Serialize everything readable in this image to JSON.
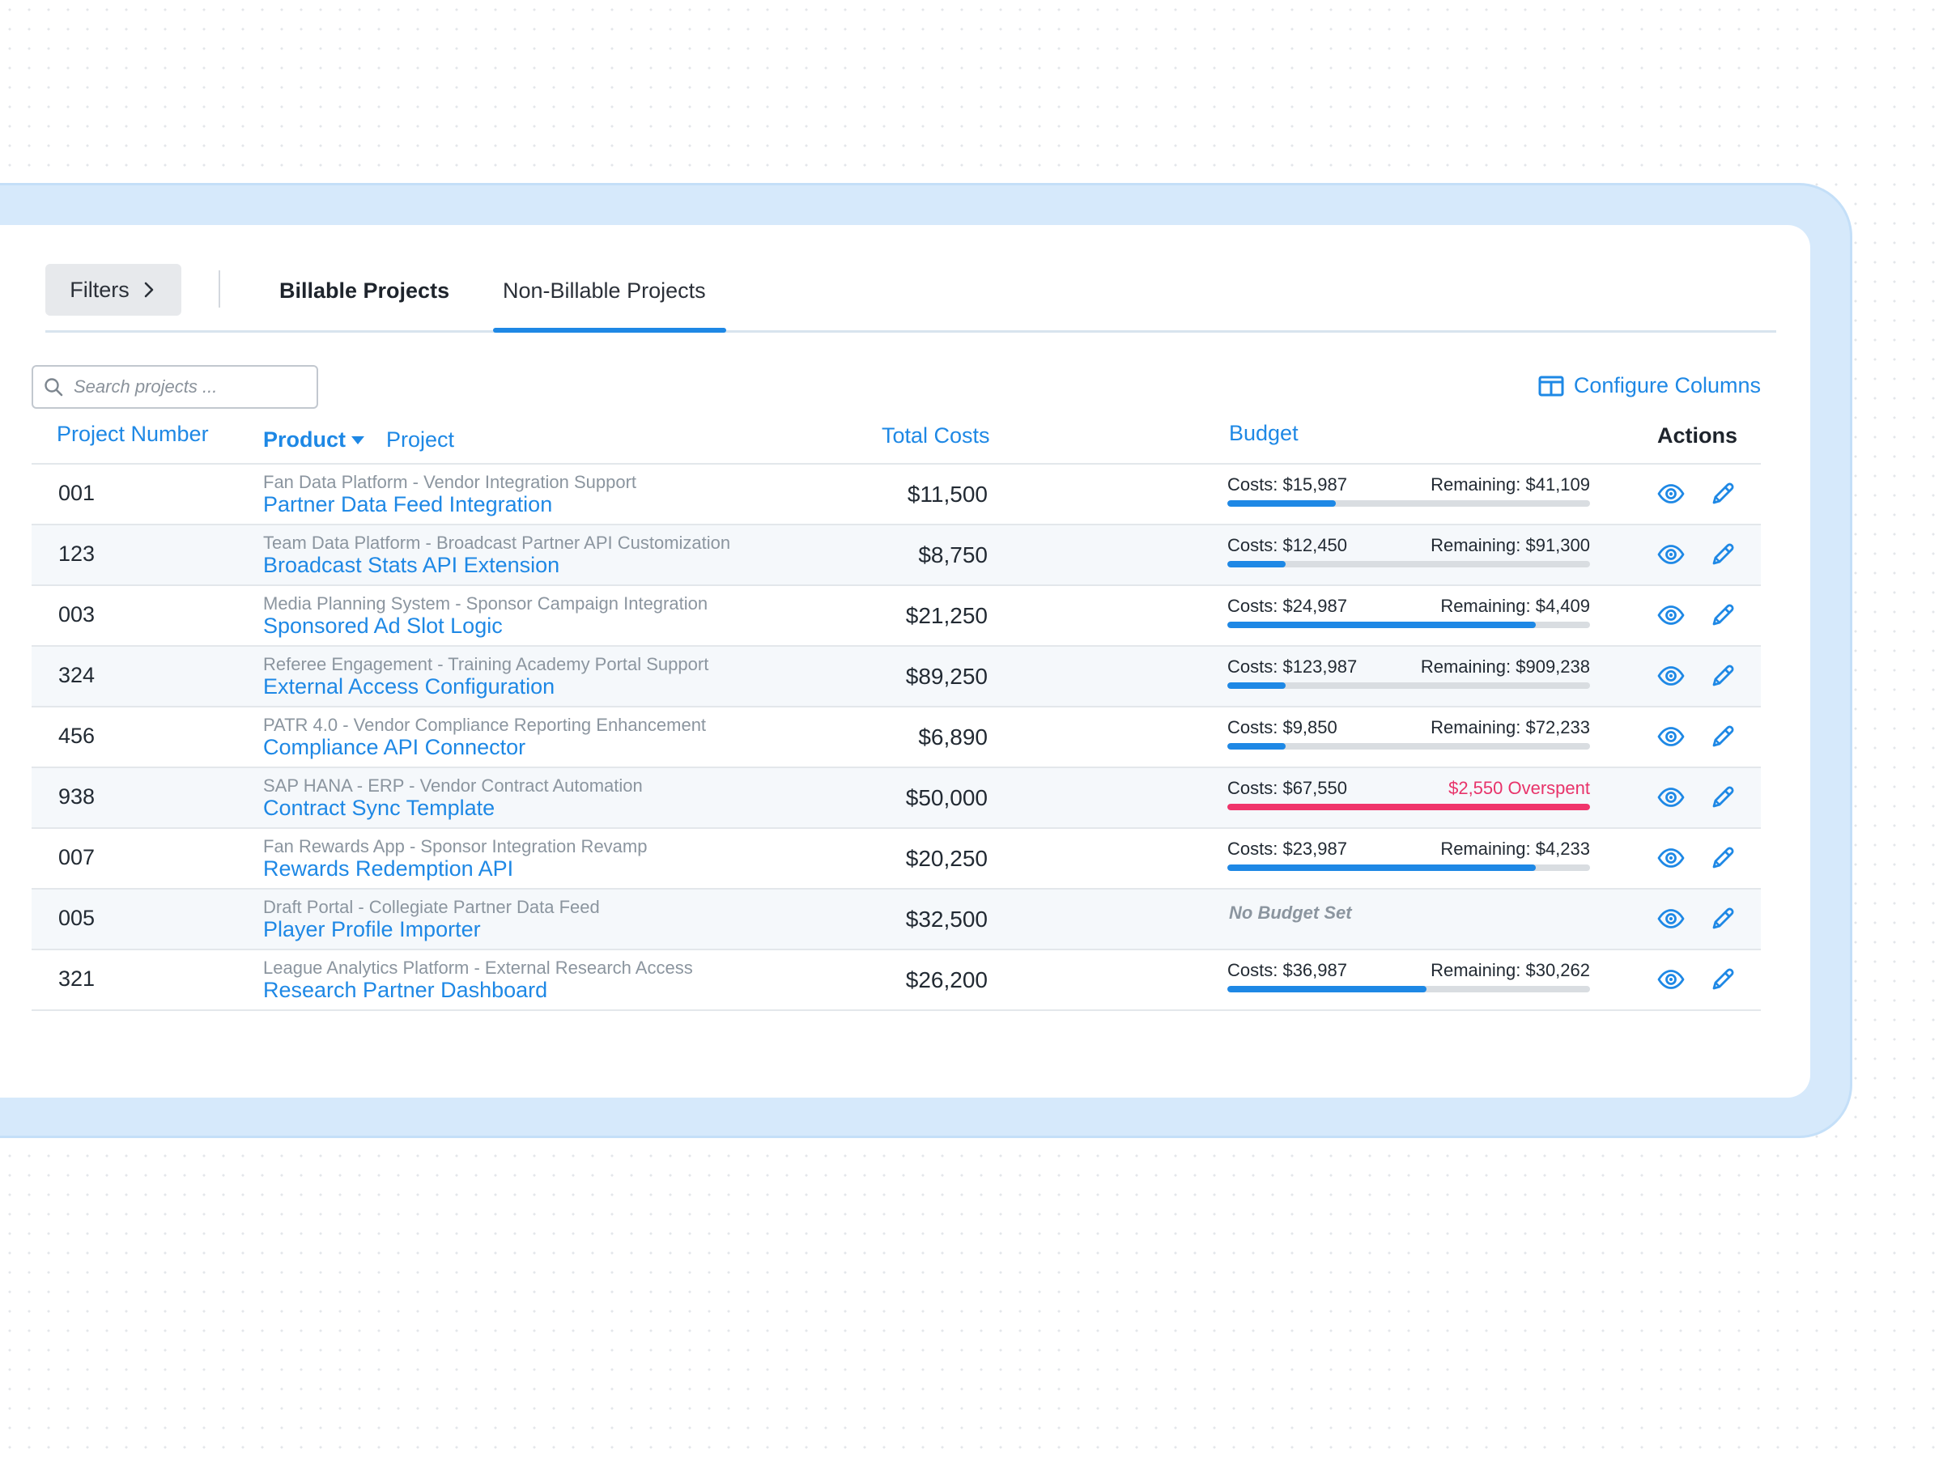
{
  "toolbar": {
    "filters_label": "Filters",
    "tabs": [
      {
        "label": "Billable Projects"
      },
      {
        "label": "Non-Billable Projects",
        "active": true
      }
    ]
  },
  "search": {
    "placeholder": "Search projects ..."
  },
  "configure_columns": {
    "label": "Configure Columns"
  },
  "columns": {
    "number": "Project Number",
    "product": "Product",
    "project": "Project",
    "total": "Total Costs",
    "budget": "Budget",
    "actions": "Actions"
  },
  "rows": [
    {
      "number": "001",
      "product": "Fan Data Platform - Vendor Integration Support",
      "project": "Partner Data Feed Integration",
      "total": "$11,500",
      "costs": "Costs: $15,987",
      "remaining": "Remaining: $41,109",
      "spent_ratio": 0.3,
      "over": false
    },
    {
      "number": "123",
      "product": "Team Data Platform - Broadcast Partner API Customization",
      "project": "Broadcast Stats API Extension",
      "total": "$8,750",
      "costs": "Costs: $12,450",
      "remaining": "Remaining: $91,300",
      "spent_ratio": 0.16,
      "over": false
    },
    {
      "number": "003",
      "product": "Media Planning System - Sponsor Campaign Integration",
      "project": "Sponsored Ad Slot Logic",
      "total": "$21,250",
      "costs": "Costs: $24,987",
      "remaining": "Remaining: $4,409",
      "spent_ratio": 0.85,
      "over": false
    },
    {
      "number": "324",
      "product": "Referee Engagement - Training Academy Portal Support",
      "project": "External Access Configuration",
      "total": "$89,250",
      "costs": "Costs: $123,987",
      "remaining": "Remaining: $909,238",
      "spent_ratio": 0.16,
      "over": false
    },
    {
      "number": "456",
      "product": "PATR 4.0 - Vendor Compliance Reporting Enhancement",
      "project": "Compliance API Connector",
      "total": "$6,890",
      "costs": "Costs: $9,850",
      "remaining": "Remaining: $72,233",
      "spent_ratio": 0.16,
      "over": false
    },
    {
      "number": "938",
      "product": "SAP HANA - ERP - Vendor Contract Automation",
      "project": "Contract Sync Template",
      "total": "$50,000",
      "costs": "Costs: $67,550",
      "remaining": "$2,550 Overspent",
      "spent_ratio": 1.0,
      "over": true
    },
    {
      "number": "007",
      "product": "Fan Rewards App - Sponsor Integration Revamp",
      "project": "Rewards Redemption API",
      "total": "$20,250",
      "costs": "Costs: $23,987",
      "remaining": "Remaining: $4,233",
      "spent_ratio": 0.85,
      "over": false
    },
    {
      "number": "005",
      "product": "Draft Portal - Collegiate Partner Data Feed",
      "project": "Player Profile Importer",
      "total": "$32,500",
      "no_budget": "No Budget Set"
    },
    {
      "number": "321",
      "product": "League Analytics Platform - External Research Access",
      "project": "Research Partner Dashboard",
      "total": "$26,200",
      "costs": "Costs: $36,987",
      "remaining": "Remaining: $30,262",
      "spent_ratio": 0.55,
      "over": false
    }
  ],
  "icons": {
    "search": "search-icon",
    "filters": "chevron-right-icon",
    "configure": "columns-icon",
    "sort": "caret-down-icon",
    "view": "eye-icon",
    "edit": "pencil-icon"
  },
  "colors": {
    "accent": "#1e88e5",
    "overspent": "#e8336a",
    "frame": "#d6e9fb"
  }
}
